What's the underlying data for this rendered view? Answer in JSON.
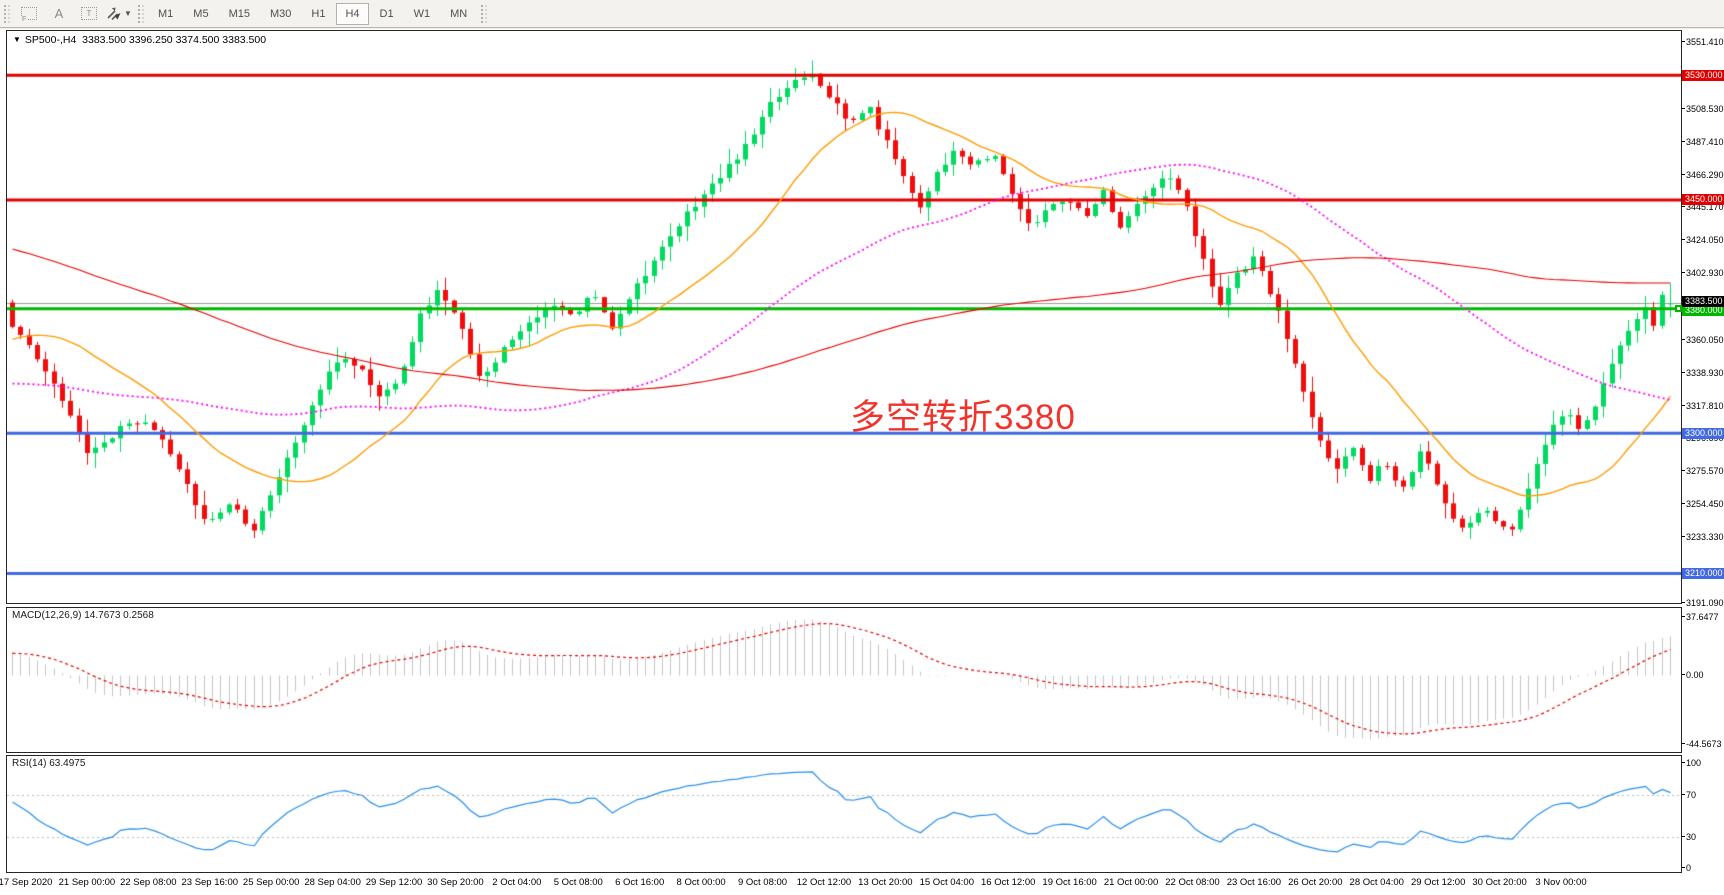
{
  "toolbar": {
    "tools": [
      {
        "name": "grid-fractal",
        "label": "F"
      },
      {
        "name": "text-label",
        "label": "A"
      },
      {
        "name": "text-box",
        "label": "T"
      },
      {
        "name": "arrows",
        "label": "caret"
      }
    ],
    "timeframes": [
      "M1",
      "M5",
      "M15",
      "M30",
      "H1",
      "H4",
      "D1",
      "W1",
      "MN"
    ],
    "active_timeframe": "H4"
  },
  "chart_header": {
    "symbol_period": "SP500-,H4",
    "ohlc": "3383.500 3396.250 3374.500 3383.500"
  },
  "annotation": {
    "text": "多空转折3380",
    "color": "#f0342c"
  },
  "macd_panel": {
    "label": "MACD(12,26,9) 14.7673 0.2568",
    "value": 14.7673,
    "signal": 0.2568
  },
  "rsi_panel": {
    "label": "RSI(14) 63.4975",
    "value": 63.4975
  },
  "chart_data": {
    "type": "candlestick",
    "symbol": "SP500-",
    "period": "H4",
    "bars": 200,
    "ylim": [
      3191.0,
      3558.5
    ],
    "last_bar": {
      "open": 3383.5,
      "high": 3396.25,
      "low": 3374.5,
      "close": 3383.5
    },
    "close_path_anchors": [
      [
        0.0,
        3367
      ],
      [
        0.015,
        3350
      ],
      [
        0.033,
        3315
      ],
      [
        0.046,
        3288
      ],
      [
        0.058,
        3296
      ],
      [
        0.072,
        3310
      ],
      [
        0.088,
        3300
      ],
      [
        0.103,
        3270
      ],
      [
        0.118,
        3242
      ],
      [
        0.132,
        3256
      ],
      [
        0.145,
        3238
      ],
      [
        0.158,
        3266
      ],
      [
        0.172,
        3297
      ],
      [
        0.185,
        3327
      ],
      [
        0.198,
        3350
      ],
      [
        0.21,
        3342
      ],
      [
        0.222,
        3322
      ],
      [
        0.234,
        3338
      ],
      [
        0.247,
        3378
      ],
      [
        0.258,
        3393
      ],
      [
        0.27,
        3370
      ],
      [
        0.281,
        3335
      ],
      [
        0.292,
        3348
      ],
      [
        0.304,
        3365
      ],
      [
        0.316,
        3376
      ],
      [
        0.328,
        3382
      ],
      [
        0.34,
        3374
      ],
      [
        0.35,
        3392
      ],
      [
        0.361,
        3367
      ],
      [
        0.373,
        3390
      ],
      [
        0.385,
        3408
      ],
      [
        0.397,
        3425
      ],
      [
        0.409,
        3444
      ],
      [
        0.421,
        3458
      ],
      [
        0.433,
        3472
      ],
      [
        0.445,
        3488
      ],
      [
        0.458,
        3512
      ],
      [
        0.473,
        3528
      ],
      [
        0.482,
        3533
      ],
      [
        0.495,
        3514
      ],
      [
        0.505,
        3498
      ],
      [
        0.516,
        3511
      ],
      [
        0.527,
        3488
      ],
      [
        0.537,
        3469
      ],
      [
        0.547,
        3444
      ],
      [
        0.558,
        3469
      ],
      [
        0.569,
        3481
      ],
      [
        0.58,
        3471
      ],
      [
        0.592,
        3480
      ],
      [
        0.603,
        3455
      ],
      [
        0.614,
        3431
      ],
      [
        0.625,
        3446
      ],
      [
        0.636,
        3452
      ],
      [
        0.647,
        3440
      ],
      [
        0.658,
        3456
      ],
      [
        0.668,
        3433
      ],
      [
        0.679,
        3447
      ],
      [
        0.69,
        3459
      ],
      [
        0.697,
        3467
      ],
      [
        0.707,
        3449
      ],
      [
        0.718,
        3413
      ],
      [
        0.728,
        3383
      ],
      [
        0.739,
        3403
      ],
      [
        0.749,
        3412
      ],
      [
        0.757,
        3396
      ],
      [
        0.766,
        3371
      ],
      [
        0.777,
        3333
      ],
      [
        0.788,
        3295
      ],
      [
        0.798,
        3277
      ],
      [
        0.808,
        3292
      ],
      [
        0.818,
        3270
      ],
      [
        0.828,
        3283
      ],
      [
        0.838,
        3262
      ],
      [
        0.85,
        3288
      ],
      [
        0.858,
        3272
      ],
      [
        0.868,
        3248
      ],
      [
        0.878,
        3238
      ],
      [
        0.886,
        3253
      ],
      [
        0.895,
        3244
      ],
      [
        0.905,
        3237
      ],
      [
        0.916,
        3268
      ],
      [
        0.928,
        3302
      ],
      [
        0.938,
        3315
      ],
      [
        0.947,
        3300
      ],
      [
        0.956,
        3322
      ],
      [
        0.966,
        3348
      ],
      [
        0.976,
        3368
      ],
      [
        0.984,
        3382
      ],
      [
        0.99,
        3370
      ],
      [
        0.996,
        3394
      ],
      [
        1.0,
        3383.5
      ]
    ],
    "pre_history_anchors": [
      [
        0,
        3560
      ],
      [
        0.53,
        3432
      ],
      [
        0.545,
        3372
      ],
      [
        0.838,
        3266
      ],
      [
        0.855,
        3332
      ],
      [
        1,
        3386
      ]
    ],
    "pre_history_bars": 130,
    "moving_averages": [
      {
        "name": "ma-fast",
        "period": 20,
        "color": "#ff9b00",
        "style": "solid",
        "width": 1.4
      },
      {
        "name": "ma-mid",
        "period": 60,
        "color": "#ff00ff",
        "style": "dotted",
        "width": 1.8
      },
      {
        "name": "ma-slow",
        "period": 130,
        "color": "#e60000",
        "style": "solid",
        "width": 1.1
      }
    ],
    "hlines": [
      {
        "price": 3530.0,
        "color": "#e00000",
        "width": 3,
        "label": "3530.000"
      },
      {
        "price": 3450.0,
        "color": "#e00000",
        "width": 3,
        "label": "3450.000"
      },
      {
        "price": 3380.0,
        "color": "#00b800",
        "width": 3,
        "label": "3380.000"
      },
      {
        "price": 3300.0,
        "color": "#4169e1",
        "width": 3,
        "label": "3300.000"
      },
      {
        "price": 3210.0,
        "color": "#4169e1",
        "width": 3,
        "label": "3210.000"
      }
    ],
    "bid_line": {
      "price": 3383.5,
      "color": "#9b9b9b",
      "label": "3383.500",
      "label_bg": "#000000"
    },
    "price_ticks": [
      {
        "value": 3551.41,
        "label": "3551.410"
      },
      {
        "value": 3508.53,
        "label": "3508.530"
      },
      {
        "value": 3487.41,
        "label": "3487.410"
      },
      {
        "value": 3466.29,
        "label": "3466.290"
      },
      {
        "value": 3445.17,
        "label": "3445.170"
      },
      {
        "value": 3424.05,
        "label": "3424.050"
      },
      {
        "value": 3402.93,
        "label": "3402.930"
      },
      {
        "value": 3360.05,
        "label": "3360.050"
      },
      {
        "value": 3338.93,
        "label": "3338.930"
      },
      {
        "value": 3317.81,
        "label": "3317.810"
      },
      {
        "value": 3296.69,
        "label": "3296.690"
      },
      {
        "value": 3275.57,
        "label": "3275.570"
      },
      {
        "value": 3254.45,
        "label": "3254.450"
      },
      {
        "value": 3233.33,
        "label": "3233.330"
      },
      {
        "value": 3191.09,
        "label": "3191.090"
      }
    ],
    "macd": {
      "params": [
        12,
        26,
        9
      ],
      "ylim": [
        -49.8,
        43.7
      ],
      "axis_ticks": [
        {
          "value": 37.6477,
          "label": "37.6477"
        },
        {
          "value": 0,
          "label": "0.00"
        },
        {
          "value": -44.5673,
          "label": "-44.5673"
        }
      ],
      "hist_color": "#c6c6c6",
      "signal_color": "#e60000"
    },
    "rsi": {
      "period": 14,
      "ylim": [
        -3.8,
        106.7
      ],
      "axis_ticks": [
        {
          "value": 100,
          "label": "100"
        },
        {
          "value": 70,
          "label": "70"
        },
        {
          "value": 30,
          "label": "30"
        },
        {
          "value": 0,
          "label": "0"
        }
      ],
      "levels": [
        30,
        70
      ],
      "line_color": "#2a8fe8",
      "level_color": "#bcbcbc"
    },
    "candle_colors": {
      "bull": "#00db60",
      "bear": "#f20d0d"
    },
    "date_labels": [
      "17 Sep 2020",
      "21 Sep 00:00",
      "22 Sep 08:00",
      "23 Sep 16:00",
      "25 Sep 00:00",
      "28 Sep 04:00",
      "29 Sep 12:00",
      "30 Sep 20:00",
      "2 Oct 04:00",
      "5 Oct 08:00",
      "6 Oct 16:00",
      "8 Oct 00:00",
      "9 Oct 08:00",
      "12 Oct 12:00",
      "13 Oct 20:00",
      "15 Oct 04:00",
      "16 Oct 12:00",
      "19 Oct 16:00",
      "21 Oct 00:00",
      "22 Oct 08:00",
      "23 Oct 16:00",
      "26 Oct 20:00",
      "28 Oct 04:00",
      "29 Oct 12:00",
      "30 Oct 20:00",
      "3 Nov 00:00"
    ]
  }
}
